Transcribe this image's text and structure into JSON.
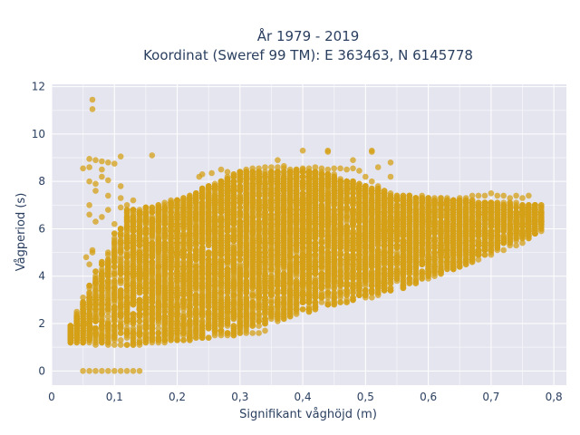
{
  "chart_data": {
    "type": "scatter",
    "title_line1": "År 1979 - 2019",
    "title_line2": "Koordinat (Sweref 99 TM): E 363463, N 6145778",
    "xlabel": "Signifikant våghöjd (m)",
    "ylabel": "Vågperiod (s)",
    "xlim": [
      0,
      0.82
    ],
    "ylim": [
      -0.6,
      12.1
    ],
    "xticks": [
      0,
      0.1,
      0.2,
      0.3,
      0.4,
      0.5,
      0.6,
      0.7,
      0.8
    ],
    "xtick_labels": [
      "0",
      "0,1",
      "0,2",
      "0,3",
      "0,4",
      "0,5",
      "0,6",
      "0,7",
      "0,8"
    ],
    "yticks": [
      0,
      2,
      4,
      6,
      8,
      10,
      12
    ],
    "ytick_labels": [
      "0",
      "2",
      "4",
      "6",
      "8",
      "10",
      "12"
    ],
    "grid": true,
    "background": "#e5e5ef",
    "marker_color": "#d4a017",
    "points": [
      [
        0.03,
        1.4
      ],
      [
        0.03,
        1.5
      ],
      [
        0.04,
        1.3
      ],
      [
        0.04,
        1.5
      ],
      [
        0.05,
        1.4
      ],
      [
        0.05,
        1.6
      ],
      [
        0.06,
        1.2
      ],
      [
        0.06,
        1.5
      ],
      [
        0.07,
        1.1
      ],
      [
        0.07,
        1.5
      ],
      [
        0.08,
        1.2
      ],
      [
        0.08,
        1.5
      ],
      [
        0.09,
        1.1
      ],
      [
        0.09,
        1.5
      ],
      [
        0.1,
        1.1
      ],
      [
        0.1,
        1.6
      ],
      [
        0.11,
        1.1
      ],
      [
        0.11,
        1.6
      ],
      [
        0.12,
        1.1
      ],
      [
        0.12,
        1.6
      ],
      [
        0.13,
        1.1
      ],
      [
        0.13,
        1.6
      ],
      [
        0.14,
        1.1
      ],
      [
        0.14,
        1.6
      ],
      [
        0.15,
        1.2
      ],
      [
        0.15,
        1.6
      ],
      [
        0.16,
        1.2
      ],
      [
        0.16,
        1.6
      ],
      [
        0.17,
        1.2
      ],
      [
        0.17,
        1.6
      ],
      [
        0.18,
        1.2
      ],
      [
        0.18,
        1.6
      ],
      [
        0.19,
        1.3
      ],
      [
        0.19,
        1.6
      ],
      [
        0.2,
        1.3
      ],
      [
        0.2,
        1.7
      ],
      [
        0.21,
        1.3
      ],
      [
        0.21,
        1.7
      ],
      [
        0.22,
        1.3
      ],
      [
        0.22,
        1.7
      ],
      [
        0.23,
        1.4
      ],
      [
        0.23,
        1.7
      ],
      [
        0.24,
        1.4
      ],
      [
        0.25,
        1.4
      ],
      [
        0.26,
        1.5
      ],
      [
        0.27,
        1.5
      ],
      [
        0.28,
        1.5
      ],
      [
        0.29,
        1.5
      ],
      [
        0.3,
        1.6
      ],
      [
        0.31,
        1.6
      ],
      [
        0.32,
        1.6
      ],
      [
        0.33,
        1.6
      ],
      [
        0.34,
        1.7
      ],
      [
        0.05,
        0.0
      ],
      [
        0.06,
        0.0
      ],
      [
        0.07,
        0.0
      ],
      [
        0.08,
        0.0
      ],
      [
        0.09,
        0.0
      ],
      [
        0.1,
        0.0
      ],
      [
        0.11,
        0.0
      ],
      [
        0.12,
        0.0
      ],
      [
        0.13,
        0.0
      ],
      [
        0.14,
        0.0
      ],
      [
        0.065,
        11.45
      ],
      [
        0.065,
        11.05
      ],
      [
        0.16,
        9.1
      ],
      [
        0.11,
        9.05
      ],
      [
        0.06,
        8.95
      ],
      [
        0.07,
        8.9
      ],
      [
        0.08,
        8.85
      ],
      [
        0.08,
        8.5
      ],
      [
        0.09,
        8.8
      ],
      [
        0.1,
        8.75
      ],
      [
        0.05,
        8.55
      ],
      [
        0.06,
        8.6
      ],
      [
        0.06,
        8.0
      ],
      [
        0.07,
        7.6
      ],
      [
        0.07,
        7.9
      ],
      [
        0.08,
        8.2
      ],
      [
        0.09,
        8.05
      ],
      [
        0.09,
        7.4
      ],
      [
        0.11,
        7.8
      ],
      [
        0.11,
        7.3
      ],
      [
        0.06,
        7.0
      ],
      [
        0.06,
        6.6
      ],
      [
        0.07,
        6.3
      ],
      [
        0.08,
        6.5
      ],
      [
        0.09,
        6.8
      ],
      [
        0.1,
        6.2
      ],
      [
        0.11,
        6.9
      ],
      [
        0.12,
        6.4
      ],
      [
        0.12,
        7.0
      ],
      [
        0.13,
        7.2
      ],
      [
        0.13,
        6.3
      ],
      [
        0.14,
        6.7
      ],
      [
        0.14,
        6.0
      ],
      [
        0.15,
        6.9
      ],
      [
        0.16,
        6.2
      ],
      [
        0.17,
        7.0
      ],
      [
        0.18,
        7.1
      ],
      [
        0.19,
        6.5
      ],
      [
        0.2,
        7.2
      ],
      [
        0.21,
        6.8
      ],
      [
        0.22,
        7.3
      ],
      [
        0.23,
        7.0
      ],
      [
        0.24,
        7.5
      ],
      [
        0.25,
        7.7
      ],
      [
        0.26,
        7.8
      ],
      [
        0.27,
        8.0
      ],
      [
        0.28,
        8.2
      ],
      [
        0.29,
        8.3
      ],
      [
        0.3,
        8.4
      ],
      [
        0.31,
        8.5
      ],
      [
        0.32,
        8.55
      ],
      [
        0.33,
        8.55
      ],
      [
        0.34,
        8.6
      ],
      [
        0.35,
        8.6
      ],
      [
        0.36,
        8.6
      ],
      [
        0.37,
        8.55
      ],
      [
        0.38,
        8.5
      ],
      [
        0.39,
        8.45
      ],
      [
        0.4,
        8.55
      ],
      [
        0.41,
        8.55
      ],
      [
        0.42,
        8.6
      ],
      [
        0.43,
        8.55
      ],
      [
        0.44,
        8.5
      ],
      [
        0.45,
        8.55
      ],
      [
        0.46,
        8.55
      ],
      [
        0.47,
        8.5
      ],
      [
        0.48,
        8.55
      ],
      [
        0.49,
        8.45
      ],
      [
        0.24,
        8.3
      ],
      [
        0.27,
        8.5
      ],
      [
        0.28,
        8.4
      ],
      [
        0.255,
        8.35
      ],
      [
        0.235,
        8.2
      ],
      [
        0.37,
        8.65
      ],
      [
        0.4,
        9.3
      ],
      [
        0.44,
        9.3
      ],
      [
        0.51,
        9.3
      ],
      [
        0.44,
        9.25
      ],
      [
        0.51,
        9.25
      ],
      [
        0.36,
        8.9
      ],
      [
        0.48,
        8.9
      ],
      [
        0.52,
        8.6
      ],
      [
        0.54,
        8.2
      ],
      [
        0.54,
        8.8
      ],
      [
        0.5,
        8.2
      ],
      [
        0.51,
        8.0
      ],
      [
        0.52,
        7.8
      ],
      [
        0.53,
        7.6
      ],
      [
        0.54,
        7.4
      ],
      [
        0.55,
        7.2
      ],
      [
        0.56,
        7.0
      ],
      [
        0.57,
        6.9
      ],
      [
        0.58,
        6.9
      ],
      [
        0.59,
        6.8
      ],
      [
        0.6,
        6.8
      ],
      [
        0.61,
        6.9
      ],
      [
        0.62,
        7.0
      ],
      [
        0.63,
        7.1
      ],
      [
        0.64,
        7.2
      ],
      [
        0.65,
        7.3
      ],
      [
        0.66,
        7.3
      ],
      [
        0.67,
        7.4
      ],
      [
        0.68,
        7.4
      ],
      [
        0.69,
        7.4
      ],
      [
        0.7,
        7.5
      ],
      [
        0.71,
        7.4
      ],
      [
        0.72,
        7.4
      ],
      [
        0.73,
        7.3
      ],
      [
        0.74,
        7.4
      ],
      [
        0.75,
        7.3
      ],
      [
        0.76,
        7.4
      ],
      [
        0.77,
        7.0
      ],
      [
        0.78,
        6.8
      ],
      [
        0.78,
        6.2
      ],
      [
        0.77,
        5.8
      ],
      [
        0.76,
        5.6
      ],
      [
        0.75,
        5.4
      ],
      [
        0.74,
        5.3
      ],
      [
        0.72,
        5.1
      ],
      [
        0.7,
        4.9
      ],
      [
        0.68,
        4.7
      ],
      [
        0.66,
        4.5
      ],
      [
        0.64,
        4.3
      ],
      [
        0.62,
        4.1
      ],
      [
        0.6,
        3.9
      ],
      [
        0.58,
        3.7
      ],
      [
        0.56,
        3.5
      ],
      [
        0.54,
        3.4
      ],
      [
        0.52,
        3.2
      ],
      [
        0.5,
        3.1
      ],
      [
        0.48,
        3.0
      ],
      [
        0.46,
        2.9
      ],
      [
        0.44,
        2.8
      ],
      [
        0.42,
        2.7
      ],
      [
        0.41,
        2.5
      ],
      [
        0.4,
        2.6
      ],
      [
        0.38,
        2.5
      ],
      [
        0.36,
        2.3
      ],
      [
        0.34,
        2.2
      ],
      [
        0.32,
        2.1
      ],
      [
        0.3,
        2.0
      ],
      [
        0.28,
        1.9
      ],
      [
        0.26,
        1.8
      ],
      [
        0.065,
        5.1
      ],
      [
        0.065,
        5.0
      ],
      [
        0.055,
        4.8
      ],
      [
        0.06,
        4.5
      ],
      [
        0.07,
        4.2
      ],
      [
        0.08,
        4.0
      ],
      [
        0.09,
        3.8
      ],
      [
        0.1,
        3.6
      ],
      [
        0.06,
        2.8
      ],
      [
        0.06,
        2.4
      ],
      [
        0.055,
        2.0
      ],
      [
        0.065,
        1.8
      ],
      [
        0.2,
        2.4
      ],
      [
        0.22,
        3.0
      ],
      [
        0.24,
        3.6
      ],
      [
        0.26,
        4.2
      ],
      [
        0.28,
        4.8
      ],
      [
        0.3,
        5.4
      ],
      [
        0.32,
        5.8
      ],
      [
        0.34,
        6.2
      ],
      [
        0.36,
        6.6
      ],
      [
        0.38,
        6.8
      ],
      [
        0.4,
        7.0
      ],
      [
        0.42,
        7.1
      ],
      [
        0.44,
        7.2
      ],
      [
        0.46,
        7.0
      ],
      [
        0.48,
        6.8
      ],
      [
        0.5,
        6.6
      ],
      [
        0.52,
        6.3
      ],
      [
        0.54,
        6.1
      ],
      [
        0.56,
        5.9
      ],
      [
        0.58,
        5.8
      ],
      [
        0.6,
        5.7
      ],
      [
        0.62,
        5.8
      ],
      [
        0.64,
        5.9
      ],
      [
        0.66,
        6.0
      ],
      [
        0.68,
        6.1
      ],
      [
        0.7,
        6.2
      ],
      [
        0.72,
        6.3
      ],
      [
        0.74,
        6.4
      ],
      [
        0.76,
        6.5
      ],
      [
        0.78,
        6.6
      ]
    ],
    "dense_regions": [
      {
        "x": [
          0.03,
          0.12
        ],
        "ylow": [
          1.2,
          1.1
        ],
        "yhigh": [
          1.7,
          6.8
        ],
        "n": 700
      },
      {
        "x": [
          0.12,
          0.18
        ],
        "ylow": [
          1.1,
          1.2
        ],
        "yhigh": [
          6.8,
          7.0
        ],
        "n": 900
      },
      {
        "x": [
          0.18,
          0.3
        ],
        "ylow": [
          1.2,
          1.5
        ],
        "yhigh": [
          7.0,
          8.4
        ],
        "n": 2400
      },
      {
        "x": [
          0.3,
          0.42
        ],
        "ylow": [
          1.6,
          2.6
        ],
        "yhigh": [
          8.4,
          8.5
        ],
        "n": 2400
      },
      {
        "x": [
          0.42,
          0.54
        ],
        "ylow": [
          2.6,
          3.3
        ],
        "yhigh": [
          8.5,
          7.5
        ],
        "n": 2000
      },
      {
        "x": [
          0.54,
          0.66
        ],
        "ylow": [
          3.3,
          4.5
        ],
        "yhigh": [
          7.5,
          7.2
        ],
        "n": 1500
      },
      {
        "x": [
          0.66,
          0.78
        ],
        "ylow": [
          4.5,
          5.9
        ],
        "yhigh": [
          7.2,
          7.0
        ],
        "n": 1000
      }
    ],
    "dense_seed": 7
  }
}
